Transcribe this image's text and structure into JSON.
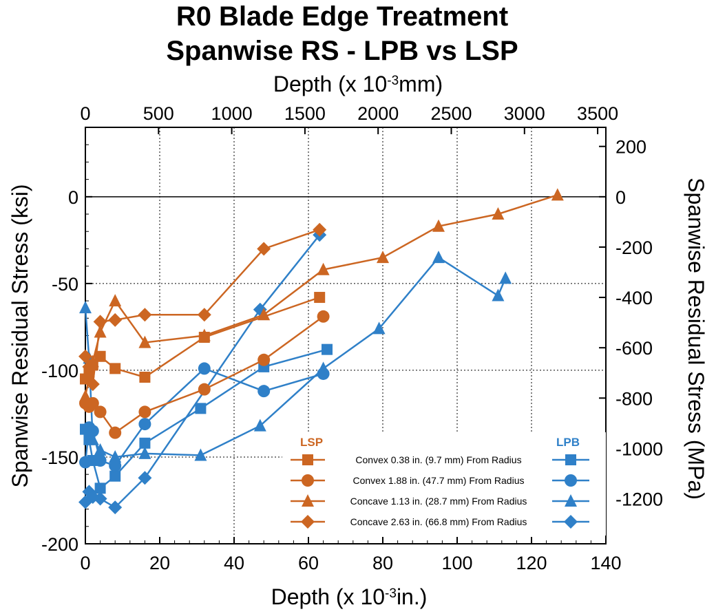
{
  "chart_data": {
    "type": "scatter",
    "title_line1": "R0 Blade Edge Treatment",
    "title_line2": "Spanwise RS - LPB vs LSP",
    "xlabel_bottom": {
      "base": "Depth (x 10",
      "exp": "-3",
      "tail": "in.)"
    },
    "xlabel_top": {
      "base": "Depth (x 10",
      "exp": "-3",
      "tail": "mm)"
    },
    "ylabel_left": "Spanwise Residual Stress (ksi)",
    "ylabel_right": "Spanwise Residual Stress (MPa)",
    "xlim": [
      0,
      140
    ],
    "ylim": [
      -200,
      40
    ],
    "x_ticks": [
      "0",
      "20",
      "40",
      "60",
      "80",
      "100",
      "120",
      "140"
    ],
    "y_ticks": [
      "-200",
      "-150",
      "-100",
      "-50",
      "0"
    ],
    "top_ticks": [
      "0",
      "500",
      "1000",
      "1500",
      "2000",
      "2500",
      "3000",
      "3500"
    ],
    "right_ticks": [
      "200",
      "0",
      "-200",
      "-400",
      "-600",
      "-800",
      "-1000",
      "-1200"
    ],
    "grid": "dotted",
    "legend_groups": {
      "left": "LSP",
      "right": "LPB"
    },
    "legend_entries": [
      "Convex 0.38 in. (9.7 mm) From Radius",
      "Convex 1.88 in. (47.7 mm) From Radius",
      "Concave 1.13 in. (28.7 mm) From Radius",
      "Concave 2.63 in. (66.8 mm) From Radius"
    ],
    "colors": {
      "LSP": "#cc6622",
      "LPB": "#2f80c8"
    },
    "series": [
      {
        "group": "LSP",
        "marker": "square",
        "x": [
          0,
          1,
          2,
          4,
          8,
          16,
          32,
          63
        ],
        "y": [
          -105,
          -101,
          -97,
          -92,
          -99,
          -104,
          -81,
          -58
        ]
      },
      {
        "group": "LSP",
        "marker": "circle",
        "x": [
          0,
          1,
          2,
          4,
          8,
          16,
          32,
          48,
          64
        ],
        "y": [
          -119,
          -121,
          -119,
          -124,
          -136,
          -124,
          -111,
          -94,
          -69
        ]
      },
      {
        "group": "LSP",
        "marker": "triangle",
        "x": [
          0,
          1,
          2,
          4,
          8,
          16,
          32,
          48,
          64,
          80,
          95,
          111,
          127
        ],
        "y": [
          -115,
          -104,
          -95,
          -78,
          -60,
          -84,
          -80,
          -68,
          -42,
          -35,
          -17,
          -10,
          1
        ]
      },
      {
        "group": "LSP",
        "marker": "diamond",
        "x": [
          0,
          1,
          2,
          4,
          8,
          16,
          32,
          48,
          63
        ],
        "y": [
          -92,
          -98,
          -108,
          -72,
          -71,
          -68,
          -68,
          -30,
          -19
        ]
      },
      {
        "group": "LPB",
        "marker": "square",
        "x": [
          0,
          1,
          2,
          4,
          8,
          16,
          31,
          48,
          65
        ],
        "y": [
          -134,
          -140,
          -152,
          -168,
          -161,
          -142,
          -122,
          -98,
          -88
        ]
      },
      {
        "group": "LPB",
        "marker": "circle",
        "x": [
          0,
          1,
          2,
          4,
          8,
          16,
          32,
          48,
          64
        ],
        "y": [
          -153,
          -133,
          -135,
          -152,
          -155,
          -131,
          -99,
          -112,
          -102
        ]
      },
      {
        "group": "LPB",
        "marker": "triangle",
        "x": [
          0,
          1,
          2,
          4,
          8,
          16,
          31,
          47,
          64,
          79,
          95,
          111,
          113
        ],
        "y": [
          -64,
          -93,
          -140,
          -146,
          -150,
          -148,
          -149,
          -132,
          -99,
          -76,
          -35,
          -57,
          -47
        ]
      },
      {
        "group": "LPB",
        "marker": "diamond",
        "x": [
          0,
          1,
          2,
          4,
          8,
          16,
          47,
          63
        ],
        "y": [
          -176,
          -170,
          -173,
          -174,
          -179,
          -162,
          -65,
          -22
        ]
      }
    ]
  }
}
